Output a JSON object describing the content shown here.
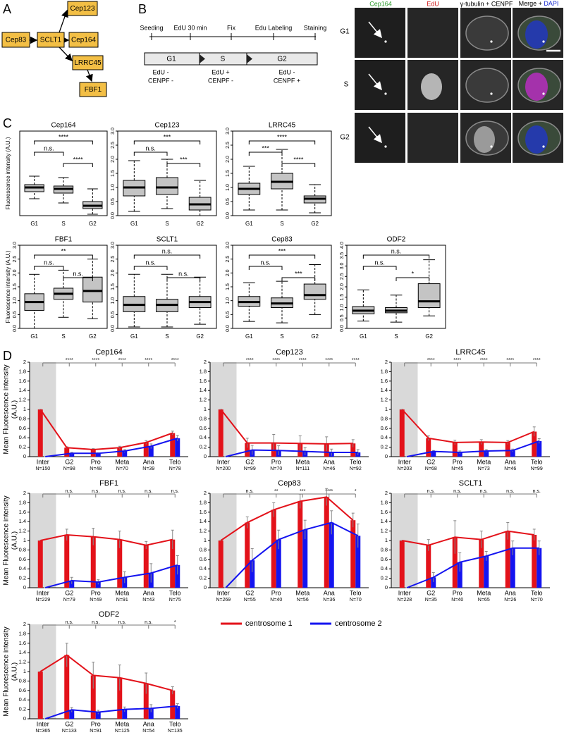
{
  "panel_labels": [
    "A",
    "B",
    "C",
    "D"
  ],
  "panel_a": {
    "nodes": [
      "Cep83",
      "SCLT1",
      "Cep123",
      "Cep164",
      "LRRC45",
      "FBF1"
    ]
  },
  "panel_b": {
    "timeline": [
      "Seeding",
      "EdU 30 min",
      "Fix",
      "Edu Labeling",
      "Staining"
    ],
    "phases": [
      "G1",
      "S",
      "G2"
    ],
    "markers": [
      [
        "EdU -",
        "CENPF -"
      ],
      [
        "EdU +",
        "CENPF -"
      ],
      [
        "EdU -",
        "CENPF +"
      ]
    ],
    "columns": [
      "Cep164",
      "EdU",
      "γ-tubulin + CENPF",
      "Merge +",
      "DAPI"
    ],
    "rows": [
      "G1",
      "S",
      "G2"
    ]
  },
  "panel_c": {
    "ylabel": "Fluorescence intensity (A.U.)",
    "groups": [
      "G1",
      "S",
      "G2"
    ],
    "charts": [
      {
        "title": "Cep164",
        "ylim": [
          0,
          3
        ],
        "boxes": [
          [
            0.6,
            0.85,
            1.0,
            1.1,
            1.4
          ],
          [
            0.45,
            0.8,
            0.95,
            1.05,
            1.35
          ],
          [
            0.05,
            0.25,
            0.35,
            0.5,
            0.95
          ]
        ],
        "sig": [
          "n.s.",
          "****",
          "****"
        ]
      },
      {
        "title": "Cep123",
        "ylim": [
          0,
          3
        ],
        "yticks": [
          {
            "value": 0,
            "label": "0.0"
          },
          {
            "value": 0.5,
            "label": "0.5"
          },
          {
            "value": 1,
            "label": "1.0"
          },
          {
            "value": 1.5,
            "label": "1.5"
          },
          {
            "value": 2,
            "label": "2.0"
          },
          {
            "value": 2.5,
            "label": "2.5"
          },
          {
            "value": 3,
            "label": "3.0"
          }
        ],
        "boxes": [
          [
            0.15,
            0.7,
            1.0,
            1.25,
            1.95
          ],
          [
            0.25,
            0.75,
            1.0,
            1.35,
            2.0
          ],
          [
            0.0,
            0.2,
            0.4,
            0.65,
            1.25
          ]
        ],
        "sig": [
          "n.s.",
          "***",
          "***"
        ]
      },
      {
        "title": "LRRC45",
        "ylim": [
          0,
          3
        ],
        "yticks": [
          {
            "value": 0,
            "label": "0.0"
          },
          {
            "value": 0.5,
            "label": "0.5"
          },
          {
            "value": 1,
            "label": "1.0"
          },
          {
            "value": 1.5,
            "label": "1.5"
          },
          {
            "value": 2,
            "label": "2.0"
          },
          {
            "value": 2.5,
            "label": "2.5"
          },
          {
            "value": 3,
            "label": "3.0"
          }
        ],
        "boxes": [
          [
            0.2,
            0.75,
            0.95,
            1.15,
            1.75
          ],
          [
            0.2,
            0.95,
            1.2,
            1.5,
            2.35
          ],
          [
            0.1,
            0.45,
            0.6,
            0.7,
            1.1
          ]
        ],
        "sig": [
          "***",
          "****",
          "****"
        ]
      },
      {
        "title": "FBF1",
        "ylim": [
          0,
          3
        ],
        "yticks": [
          {
            "value": 0,
            "label": "0.0"
          },
          {
            "value": 0.5,
            "label": "0.5"
          },
          {
            "value": 1,
            "label": "1.0"
          },
          {
            "value": 1.5,
            "label": "1.5"
          },
          {
            "value": 2,
            "label": "2.0"
          },
          {
            "value": 2.5,
            "label": "2.5"
          },
          {
            "value": 3,
            "label": "3.0"
          }
        ],
        "boxes": [
          [
            0.0,
            0.65,
            0.95,
            1.25,
            1.95
          ],
          [
            0.4,
            1.05,
            1.25,
            1.45,
            2.1
          ],
          [
            0.35,
            0.95,
            1.35,
            1.85,
            2.5
          ]
        ],
        "sig": [
          "n.s.",
          "**",
          "n.s."
        ]
      },
      {
        "title": "SCLT1",
        "ylim": [
          0,
          3
        ],
        "yticks": [
          {
            "value": 0,
            "label": "0.0"
          },
          {
            "value": 0.5,
            "label": "0.5"
          },
          {
            "value": 1,
            "label": "1.0"
          },
          {
            "value": 1.5,
            "label": "1.5"
          },
          {
            "value": 2,
            "label": "2.0"
          },
          {
            "value": 2.5,
            "label": "2.5"
          },
          {
            "value": 3,
            "label": "3.0"
          }
        ],
        "boxes": [
          [
            0.05,
            0.6,
            0.85,
            1.15,
            1.95
          ],
          [
            0.05,
            0.6,
            0.85,
            1.05,
            1.95
          ],
          [
            0.15,
            0.75,
            0.95,
            1.15,
            1.85
          ]
        ],
        "sig": [
          "n.s.",
          "n.s.",
          "n.s."
        ]
      },
      {
        "title": "Cep83",
        "ylim": [
          0,
          3
        ],
        "yticks": [
          {
            "value": 0,
            "label": "0.0"
          },
          {
            "value": 0.5,
            "label": "0.5"
          },
          {
            "value": 1,
            "label": "1.0"
          },
          {
            "value": 1.5,
            "label": "1.5"
          },
          {
            "value": 2,
            "label": "2.0"
          },
          {
            "value": 2.5,
            "label": "2.5"
          },
          {
            "value": 3,
            "label": "3.0"
          }
        ],
        "boxes": [
          [
            0.25,
            0.8,
            0.95,
            1.15,
            1.65
          ],
          [
            0.2,
            0.75,
            0.9,
            1.1,
            1.7
          ],
          [
            0.5,
            1.05,
            1.2,
            1.6,
            2.3
          ]
        ],
        "sig": [
          "n.s.",
          "***",
          "***"
        ]
      },
      {
        "title": "ODF2",
        "ylim": [
          0,
          4
        ],
        "yticks": [
          {
            "value": 0,
            "label": "0.0"
          },
          {
            "value": 0.5,
            "label": "0.5"
          },
          {
            "value": 1,
            "label": "1.0"
          },
          {
            "value": 1.5,
            "label": "1.5"
          },
          {
            "value": 2,
            "label": "2.0"
          },
          {
            "value": 2.5,
            "label": "2.5"
          },
          {
            "value": 3,
            "label": "3.0"
          },
          {
            "value": 3.5,
            "label": "3.5"
          },
          {
            "value": 4,
            "label": "4.0"
          }
        ],
        "boxes": [
          [
            0.35,
            0.7,
            0.85,
            1.05,
            1.85
          ],
          [
            0.3,
            0.75,
            0.85,
            1.0,
            1.6
          ],
          [
            0.6,
            1.0,
            1.3,
            2.15,
            3.3
          ]
        ],
        "sig": [
          "n.s.",
          "n.s.",
          "*"
        ]
      }
    ]
  },
  "panel_d": {
    "ylabel": [
      "Mean Fluorescence intensity",
      "(A.U.)"
    ],
    "categories": [
      "Inter",
      "G2",
      "Pro",
      "Meta",
      "Ana",
      "Telo"
    ],
    "ylim": [
      0,
      2
    ],
    "yticks": [
      0,
      0.2,
      0.4,
      0.6,
      0.8,
      1,
      1.2,
      1.4,
      1.6,
      1.8,
      2
    ],
    "series": [
      {
        "name": "centrosome 1",
        "color": "#e3121a"
      },
      {
        "name": "centrosome 2",
        "color": "#1414f0"
      }
    ],
    "charts": [
      {
        "title": "Cep164",
        "n_labels": [
          "N=150",
          "N=98",
          "N=48",
          "N=70",
          "N=39",
          "N=78"
        ],
        "sig": [
          "****",
          "****",
          "****",
          "****",
          "****"
        ],
        "values": [
          [
            1,
            0.19,
            0.15,
            0.19,
            0.3,
            0.5
          ],
          [
            0,
            0.07,
            0.07,
            0.12,
            0.22,
            0.39
          ]
        ],
        "errors": [
          [
            0,
            0.02,
            0.02,
            0.03,
            0.04,
            0.04
          ],
          [
            0,
            0.02,
            0.01,
            0.03,
            0.05,
            0.06
          ]
        ]
      },
      {
        "title": "Cep123",
        "n_labels": [
          "N=200",
          "N=99",
          "N=70",
          "N=111",
          "N=46",
          "N=92"
        ],
        "sig": [
          "****",
          "****",
          "****",
          "****",
          "****"
        ],
        "values": [
          [
            1,
            0.29,
            0.29,
            0.28,
            0.27,
            0.28
          ],
          [
            0,
            0.14,
            0.13,
            0.11,
            0.09,
            0.09
          ]
        ],
        "errors": [
          [
            0,
            0.1,
            0.18,
            0.16,
            0.15,
            0.08
          ],
          [
            0,
            0.1,
            0.1,
            0.08,
            0.07,
            0.06
          ]
        ]
      },
      {
        "title": "LRRC45",
        "n_labels": [
          "N=203",
          "N=68",
          "N=45",
          "N=73",
          "N=46",
          "N=99"
        ],
        "sig": [
          "****",
          "****",
          "****",
          "****",
          "****"
        ],
        "values": [
          [
            1,
            0.39,
            0.3,
            0.31,
            0.3,
            0.53
          ],
          [
            0,
            0.11,
            0.09,
            0.12,
            0.13,
            0.33
          ]
        ],
        "errors": [
          [
            0,
            0.05,
            0.05,
            0.05,
            0.04,
            0.1
          ],
          [
            0,
            0.02,
            0.03,
            0.03,
            0.03,
            0.05
          ]
        ]
      },
      {
        "title": "FBF1",
        "n_labels": [
          "N=229",
          "N=79",
          "N=49",
          "N=91",
          "N=43",
          "N=75"
        ],
        "sig": [
          "n.s.",
          "n.s.",
          "n.s.",
          "n.s.",
          "n.s."
        ],
        "values": [
          [
            1,
            1.12,
            1.08,
            1.02,
            0.9,
            1.02
          ],
          [
            0,
            0.15,
            0.12,
            0.22,
            0.31,
            0.48
          ]
        ],
        "errors": [
          [
            0,
            0.12,
            0.18,
            0.18,
            0.08,
            0.2
          ],
          [
            0,
            0.07,
            0.05,
            0.12,
            0.2,
            0.2
          ]
        ]
      },
      {
        "title": "Cep83",
        "n_labels": [
          "N=269",
          "N=55",
          "N=40",
          "N=56",
          "N=36",
          "N=70"
        ],
        "sig": [
          "n.s.",
          "**",
          "***",
          "****",
          "*"
        ],
        "values": [
          [
            1,
            1.38,
            1.65,
            1.83,
            1.92,
            1.43
          ],
          [
            0,
            0.58,
            1.02,
            1.23,
            1.38,
            1.1
          ]
        ],
        "errors": [
          [
            0,
            0.12,
            0.15,
            0.15,
            0.18,
            0.15
          ],
          [
            0,
            0.25,
            0.2,
            0.2,
            0.25,
            0.25
          ]
        ]
      },
      {
        "title": "SCLT1",
        "n_labels": [
          "N=228",
          "N=35",
          "N=40",
          "N=65",
          "N=26",
          "N=70"
        ],
        "sig": [
          "n.s.",
          "n.s.",
          "n.s.",
          "n.s.",
          "n.s."
        ],
        "values": [
          [
            1,
            0.9,
            1.07,
            1.02,
            1.2,
            1.12
          ],
          [
            0,
            0.22,
            0.54,
            0.67,
            0.84,
            0.84
          ]
        ],
        "errors": [
          [
            0,
            0.12,
            0.35,
            0.18,
            0.18,
            0.12
          ],
          [
            0,
            0.1,
            0.2,
            0.1,
            0.15,
            0.15
          ]
        ]
      },
      {
        "title": "ODF2",
        "n_labels": [
          "N=365",
          "N=133",
          "N=91",
          "N=125",
          "N=54",
          "N=135"
        ],
        "sig": [
          "n.s.",
          "n.s.",
          "n.s.",
          "n.s.",
          "*"
        ],
        "values": [
          [
            1,
            1.35,
            0.92,
            0.87,
            0.75,
            0.6
          ],
          [
            0,
            0.19,
            0.14,
            0.2,
            0.22,
            0.27
          ]
        ],
        "errors": [
          [
            0,
            0.25,
            0.28,
            0.27,
            0.22,
            0.08
          ],
          [
            0,
            0.05,
            0.04,
            0.05,
            0.08,
            0.05
          ]
        ]
      }
    ]
  }
}
